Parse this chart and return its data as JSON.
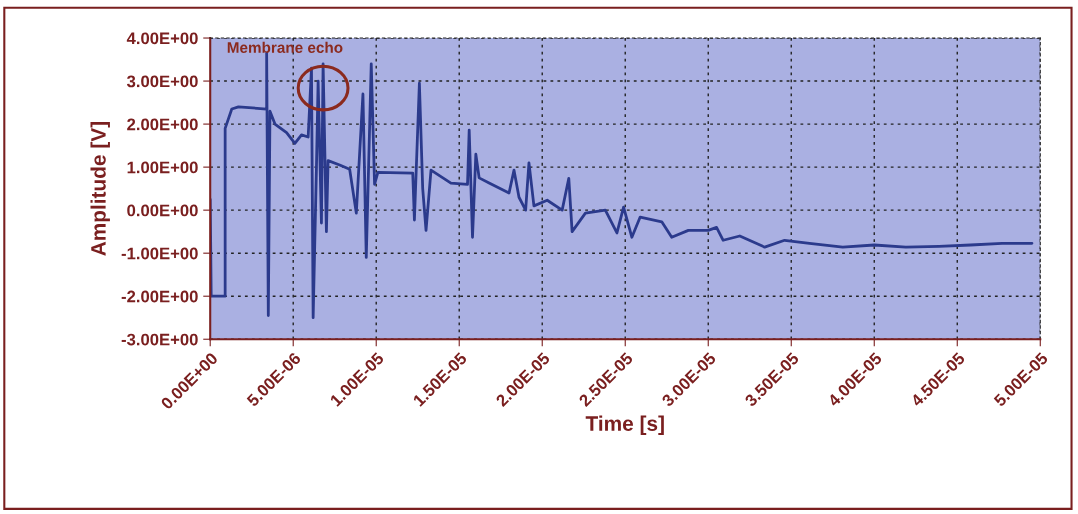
{
  "chart_data": {
    "type": "line",
    "xlabel": "Time [s]",
    "ylabel": "Amplitude [V]",
    "annotations": [
      "Membrane echo"
    ],
    "x": [
      0,
      6e-08,
      9e-07,
      9e-07,
      1.3e-06,
      1.7e-06,
      3.4e-06,
      3.4e-06,
      3.5e-06,
      3.6e-06,
      3.9e-06,
      4.6e-06,
      5.1e-06,
      5.5e-06,
      5.9e-06,
      6.1e-06,
      6.2e-06,
      6.4e-06,
      6.5e-06,
      6.7e-06,
      6.8e-06,
      7e-06,
      7.1e-06,
      7.8e-06,
      8.4e-06,
      8.8e-06,
      9.2e-06,
      9.4e-06,
      9.7e-06,
      9.9e-06,
      1.01e-05,
      1.22e-05,
      1.23e-05,
      1.26e-05,
      1.28e-05,
      1.3e-05,
      1.33e-05,
      1.45e-05,
      1.55e-05,
      1.56e-05,
      1.58e-05,
      1.6e-05,
      1.62e-05,
      1.68e-05,
      1.8e-05,
      1.83e-05,
      1.86e-05,
      1.9e-05,
      1.92e-05,
      1.95e-05,
      2.03e-05,
      2.12e-05,
      2.16e-05,
      2.18e-05,
      2.26e-05,
      2.38e-05,
      2.45e-05,
      2.49e-05,
      2.54e-05,
      2.59e-05,
      2.72e-05,
      2.78e-05,
      2.88e-05,
      3e-05,
      3.05e-05,
      3.09e-05,
      3.19e-05,
      3.34e-05,
      3.46e-05,
      3.61e-05,
      3.81e-05,
      4e-05,
      4.19e-05,
      4.39e-05,
      4.58e-05,
      4.77e-05,
      4.95e-05
    ],
    "series": [
      {
        "color": "#2b3a8c",
        "values": [
          0.25,
          -2.0,
          -2.0,
          1.9,
          2.35,
          2.4,
          2.35,
          3.65,
          -2.45,
          2.3,
          2.0,
          1.8,
          1.55,
          1.75,
          1.7,
          3.3,
          -2.5,
          1.0,
          3.0,
          -0.3,
          3.4,
          -0.5,
          1.15,
          1.05,
          0.95,
          -0.07,
          2.7,
          -1.1,
          3.4,
          0.6,
          0.88,
          0.86,
          -0.23,
          2.95,
          0.5,
          -0.47,
          0.93,
          0.63,
          0.6,
          1.86,
          -0.63,
          1.3,
          0.75,
          0.63,
          0.4,
          0.93,
          0.3,
          0.0,
          1.1,
          0.1,
          0.23,
          0.0,
          0.74,
          -0.5,
          -0.07,
          0.0,
          -0.53,
          0.07,
          -0.63,
          -0.16,
          -0.27,
          -0.63,
          -0.47,
          -0.47,
          -0.4,
          -0.7,
          -0.6,
          -0.86,
          -0.7,
          -0.77,
          -0.86,
          -0.81,
          -0.86,
          -0.84,
          -0.81,
          -0.77,
          -0.77
        ]
      }
    ],
    "xlim": [
      0,
      5e-05
    ],
    "xticks": [
      {
        "value": 0,
        "label": "0.00E+00"
      },
      {
        "value": 5e-06,
        "label": "5.00E-06"
      },
      {
        "value": 1e-05,
        "label": "1.00E-05"
      },
      {
        "value": 1.5e-05,
        "label": "1.50E-05"
      },
      {
        "value": 2e-05,
        "label": "2.00E-05"
      },
      {
        "value": 2.5e-05,
        "label": "2.50E-05"
      },
      {
        "value": 3e-05,
        "label": "3.00E-05"
      },
      {
        "value": 3.5e-05,
        "label": "3.50E-05"
      },
      {
        "value": 4e-05,
        "label": "4.00E-05"
      },
      {
        "value": 4.5e-05,
        "label": "4.50E-05"
      },
      {
        "value": 5e-05,
        "label": "5.00E-05"
      }
    ],
    "ylim": [
      -3,
      4
    ],
    "yticks": [
      {
        "value": -3,
        "label": "-3.00E+00"
      },
      {
        "value": -2,
        "label": "-2.00E+00"
      },
      {
        "value": -1,
        "label": "-1.00E+00"
      },
      {
        "value": 0,
        "label": "0.00E+00"
      },
      {
        "value": 1,
        "label": "1.00E+00"
      },
      {
        "value": 2,
        "label": "2.00E+00"
      },
      {
        "value": 3,
        "label": "3.00E+00"
      },
      {
        "value": 4,
        "label": "4.00E+00"
      }
    ],
    "grid": true,
    "legend": false,
    "marker": "none",
    "line_style": "solid"
  }
}
